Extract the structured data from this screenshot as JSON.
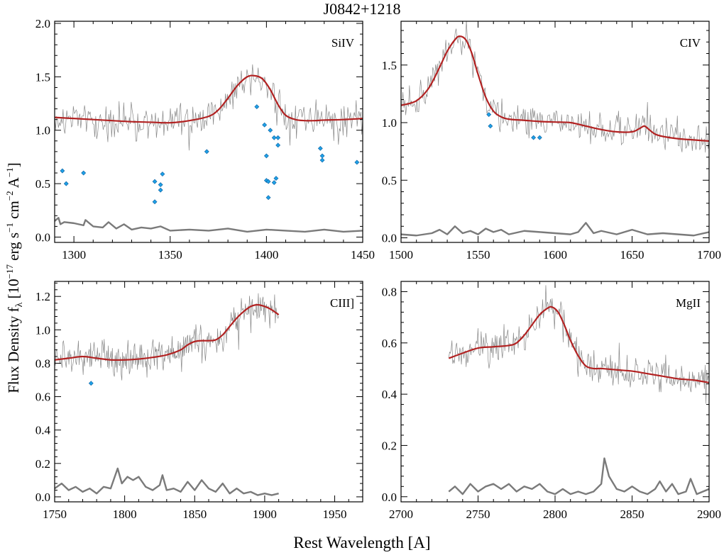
{
  "figure": {
    "title": "J0842+1218",
    "ylabel": "Flux Density f",
    "ylabel_sub": "λ",
    "ylabel_units": [
      {
        "t": " [10",
        "sup": false
      },
      {
        "t": "−17",
        "sup": true
      },
      {
        "t": " erg s",
        "sup": false
      },
      {
        "t": "−1",
        "sup": true
      },
      {
        "t": " cm",
        "sup": false
      },
      {
        "t": "−2",
        "sup": true
      },
      {
        "t": " A",
        "sup": false
      },
      {
        "t": "−1",
        "sup": true
      },
      {
        "t": "]",
        "sup": false
      }
    ],
    "xlabel": "Rest Wavelength [A]"
  },
  "colors": {
    "fit": "#b22222",
    "spectrum": "#888888",
    "error": "#7a7a7a",
    "masked_point": "#1ea0e6",
    "masked_edge": "#0b5fa0"
  },
  "chart_data": [
    {
      "type": "line",
      "line_label": "SiIV",
      "xlim": [
        1290,
        1450
      ],
      "ylim": [
        -0.05,
        2.02
      ],
      "xticks": [
        1300,
        1350,
        1400,
        1450
      ],
      "yticks": [
        0.0,
        0.5,
        1.0,
        1.5,
        2.0
      ],
      "ytick_labels": [
        "0.0",
        "0.5",
        "1.0",
        "1.5",
        "2.0"
      ],
      "spectrum_range": [
        1290,
        1450
      ],
      "fit": {
        "x": [
          1290,
          1300,
          1310,
          1320,
          1330,
          1340,
          1350,
          1360,
          1370,
          1375,
          1380,
          1385,
          1390,
          1394,
          1398,
          1402,
          1406,
          1410,
          1415,
          1420,
          1425,
          1430,
          1440,
          1450
        ],
        "y": [
          1.12,
          1.11,
          1.1,
          1.09,
          1.08,
          1.075,
          1.07,
          1.09,
          1.13,
          1.19,
          1.3,
          1.42,
          1.5,
          1.51,
          1.48,
          1.38,
          1.24,
          1.14,
          1.1,
          1.09,
          1.09,
          1.095,
          1.1,
          1.11
        ]
      },
      "error": {
        "x": [
          1290,
          1292,
          1293,
          1295,
          1300,
          1305,
          1306,
          1310,
          1315,
          1318,
          1322,
          1326,
          1330,
          1335,
          1340,
          1345,
          1350,
          1360,
          1370,
          1380,
          1390,
          1400,
          1410,
          1420,
          1430,
          1440,
          1450
        ],
        "y": [
          0.15,
          0.18,
          0.12,
          0.14,
          0.13,
          0.11,
          0.16,
          0.1,
          0.09,
          0.14,
          0.08,
          0.12,
          0.07,
          0.09,
          0.08,
          0.1,
          0.06,
          0.07,
          0.06,
          0.08,
          0.05,
          0.07,
          0.06,
          0.05,
          0.07,
          0.05,
          0.06
        ]
      },
      "masked": {
        "x": [
          1294,
          1296,
          1305,
          1342,
          1342,
          1345,
          1345,
          1346,
          1369,
          1395,
          1399,
          1400,
          1400,
          1401,
          1401,
          1402,
          1404,
          1404,
          1405,
          1406,
          1406,
          1428,
          1429,
          1429,
          1447
        ],
        "y": [
          0.62,
          0.5,
          0.6,
          0.52,
          0.33,
          0.49,
          0.44,
          0.59,
          0.8,
          1.22,
          1.05,
          0.76,
          0.53,
          0.37,
          0.52,
          1.0,
          0.93,
          0.51,
          0.55,
          0.86,
          0.93,
          0.83,
          0.76,
          0.72,
          0.7
        ]
      }
    },
    {
      "type": "line",
      "line_label": "CIV",
      "xlim": [
        1500,
        1700
      ],
      "ylim": [
        -0.04,
        1.88
      ],
      "xticks": [
        1500,
        1550,
        1600,
        1650,
        1700
      ],
      "yticks": [
        0.0,
        0.5,
        1.0,
        1.5
      ],
      "ytick_labels": [
        "0.0",
        "0.5",
        "1.0",
        "1.5"
      ],
      "spectrum_range": [
        1500,
        1700
      ],
      "fit": {
        "x": [
          1500,
          1510,
          1518,
          1525,
          1530,
          1535,
          1538,
          1542,
          1546,
          1550,
          1555,
          1560,
          1565,
          1570,
          1580,
          1590,
          1600,
          1610,
          1620,
          1630,
          1640,
          1650,
          1655,
          1658,
          1661,
          1665,
          1670,
          1680,
          1690,
          1700
        ],
        "y": [
          1.15,
          1.19,
          1.3,
          1.48,
          1.62,
          1.72,
          1.75,
          1.72,
          1.6,
          1.42,
          1.22,
          1.1,
          1.05,
          1.03,
          1.02,
          1.01,
          1.005,
          1.0,
          0.97,
          0.94,
          0.92,
          0.92,
          0.95,
          0.97,
          0.94,
          0.9,
          0.88,
          0.86,
          0.85,
          0.84
        ]
      },
      "error": {
        "x": [
          1500,
          1510,
          1520,
          1525,
          1530,
          1535,
          1540,
          1545,
          1550,
          1555,
          1560,
          1565,
          1570,
          1580,
          1590,
          1600,
          1610,
          1615,
          1620,
          1625,
          1630,
          1640,
          1650,
          1660,
          1670,
          1680,
          1690,
          1700
        ],
        "y": [
          0.03,
          0.02,
          0.04,
          0.07,
          0.03,
          0.1,
          0.04,
          0.06,
          0.03,
          0.08,
          0.05,
          0.07,
          0.03,
          0.06,
          0.05,
          0.04,
          0.03,
          0.05,
          0.13,
          0.04,
          0.06,
          0.03,
          0.07,
          0.03,
          0.04,
          0.03,
          0.02,
          0.05
        ]
      },
      "masked": {
        "x": [
          1557,
          1558,
          1586,
          1590
        ],
        "y": [
          1.07,
          0.97,
          0.87,
          0.87
        ]
      }
    },
    {
      "type": "line",
      "line_label": "CIII]",
      "xlim": [
        1750,
        1970
      ],
      "ylim": [
        -0.03,
        1.29
      ],
      "xticks": [
        1750,
        1800,
        1850,
        1900,
        1950
      ],
      "yticks": [
        0.0,
        0.2,
        0.4,
        0.6,
        0.8,
        1.0,
        1.2
      ],
      "ytick_labels": [
        "0.0",
        "0.2",
        "0.4",
        "0.6",
        "0.8",
        "1.0",
        "1.2"
      ],
      "spectrum_range": [
        1750,
        1910
      ],
      "fit": {
        "x": [
          1750,
          1760,
          1770,
          1780,
          1790,
          1800,
          1810,
          1820,
          1830,
          1840,
          1845,
          1850,
          1855,
          1860,
          1865,
          1870,
          1875,
          1880,
          1885,
          1890,
          1895,
          1900,
          1905,
          1910
        ],
        "y": [
          0.82,
          0.83,
          0.84,
          0.83,
          0.82,
          0.82,
          0.825,
          0.835,
          0.85,
          0.88,
          0.91,
          0.93,
          0.935,
          0.935,
          0.94,
          0.97,
          1.02,
          1.07,
          1.11,
          1.14,
          1.15,
          1.14,
          1.12,
          1.09
        ]
      },
      "error": {
        "x": [
          1750,
          1755,
          1760,
          1765,
          1770,
          1775,
          1780,
          1785,
          1790,
          1795,
          1798,
          1802,
          1806,
          1810,
          1815,
          1820,
          1825,
          1827,
          1830,
          1835,
          1840,
          1845,
          1850,
          1855,
          1860,
          1865,
          1870,
          1875,
          1880,
          1885,
          1890,
          1895,
          1900,
          1905,
          1910
        ],
        "y": [
          0.05,
          0.08,
          0.04,
          0.06,
          0.03,
          0.05,
          0.02,
          0.06,
          0.05,
          0.17,
          0.08,
          0.12,
          0.1,
          0.12,
          0.06,
          0.04,
          0.07,
          0.13,
          0.04,
          0.05,
          0.03,
          0.09,
          0.04,
          0.1,
          0.05,
          0.03,
          0.08,
          0.02,
          0.05,
          0.02,
          0.03,
          0.01,
          0.02,
          0.01,
          0.02
        ]
      },
      "masked": {
        "x": [
          1776
        ],
        "y": [
          0.68
        ]
      }
    },
    {
      "type": "line",
      "line_label": "MgII",
      "xlim": [
        2700,
        2900
      ],
      "ylim": [
        -0.02,
        0.84
      ],
      "xticks": [
        2700,
        2750,
        2800,
        2850,
        2900
      ],
      "yticks": [
        0.0,
        0.2,
        0.4,
        0.6,
        0.8
      ],
      "ytick_labels": [
        "0.0",
        "0.2",
        "0.4",
        "0.6",
        "0.8"
      ],
      "spectrum_range": [
        2731,
        2900
      ],
      "fit": {
        "x": [
          2731,
          2740,
          2750,
          2760,
          2770,
          2775,
          2780,
          2785,
          2790,
          2795,
          2798,
          2802,
          2806,
          2810,
          2815,
          2820,
          2825,
          2830,
          2840,
          2850,
          2860,
          2870,
          2880,
          2890,
          2900
        ],
        "y": [
          0.54,
          0.56,
          0.58,
          0.585,
          0.59,
          0.6,
          0.63,
          0.67,
          0.71,
          0.735,
          0.74,
          0.72,
          0.67,
          0.61,
          0.55,
          0.51,
          0.5,
          0.5,
          0.495,
          0.49,
          0.48,
          0.47,
          0.46,
          0.455,
          0.445
        ]
      },
      "error": {
        "x": [
          2731,
          2735,
          2740,
          2745,
          2750,
          2755,
          2760,
          2765,
          2770,
          2775,
          2780,
          2785,
          2790,
          2795,
          2800,
          2805,
          2810,
          2815,
          2820,
          2825,
          2830,
          2832,
          2835,
          2840,
          2845,
          2850,
          2855,
          2860,
          2865,
          2868,
          2872,
          2876,
          2880,
          2885,
          2888,
          2892,
          2896,
          2900
        ],
        "y": [
          0.02,
          0.04,
          0.01,
          0.05,
          0.02,
          0.04,
          0.05,
          0.03,
          0.05,
          0.02,
          0.04,
          0.03,
          0.05,
          0.02,
          0.01,
          0.03,
          0.01,
          0.02,
          0.01,
          0.02,
          0.05,
          0.15,
          0.08,
          0.03,
          0.02,
          0.04,
          0.02,
          0.01,
          0.03,
          0.06,
          0.02,
          0.05,
          0.01,
          0.02,
          0.07,
          0.01,
          0.02,
          0.03
        ]
      },
      "masked": {
        "x": [],
        "y": []
      }
    }
  ]
}
